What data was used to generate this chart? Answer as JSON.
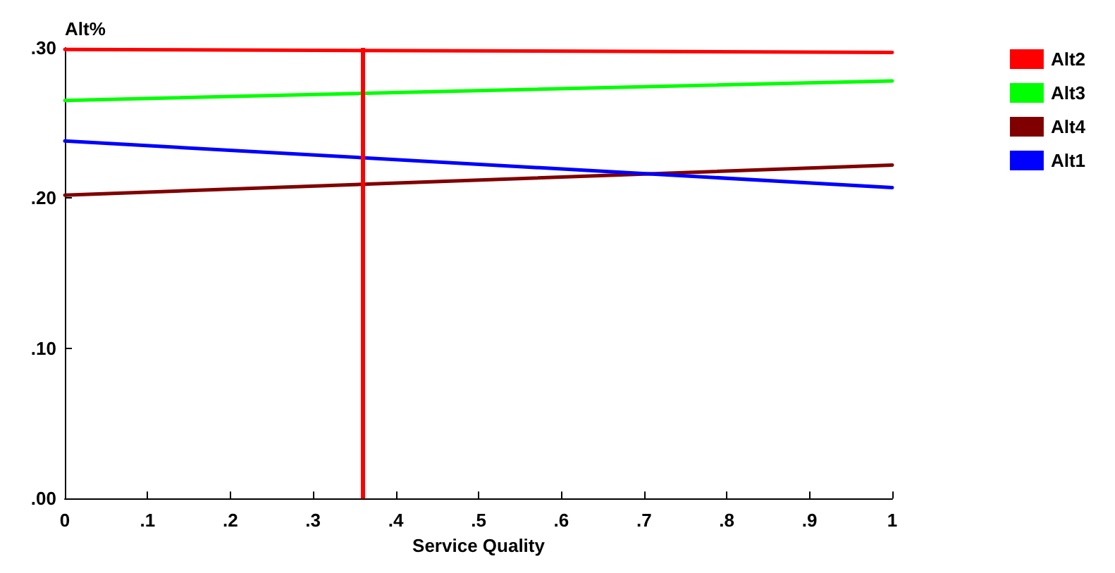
{
  "chart_data": {
    "type": "line",
    "xlabel": "Service Quality",
    "ylabel": "Alt%",
    "legend": "right",
    "series": [
      {
        "name": "Alt2",
        "color": "#ff0000",
        "x": [
          0,
          0.5,
          1
        ],
        "values": [
          0.299,
          0.298,
          0.297
        ]
      },
      {
        "name": "Alt3",
        "color": "#00ff00",
        "x": [
          0,
          1
        ],
        "values": [
          0.265,
          0.278
        ]
      },
      {
        "name": "Alt4",
        "color": "#800000",
        "x": [
          0,
          1
        ],
        "values": [
          0.202,
          0.222
        ]
      },
      {
        "name": "Alt1",
        "color": "#0000ff",
        "x": [
          0,
          1
        ],
        "values": [
          0.238,
          0.207
        ]
      }
    ],
    "xlim": [
      0,
      1
    ],
    "xticks": [
      0,
      {
        "value": 0.1,
        "label": ".1"
      },
      {
        "value": 0.2,
        "label": ".2"
      },
      {
        "value": 0.3,
        "label": ".3"
      },
      {
        "value": 0.4,
        "label": ".4"
      },
      {
        "value": 0.5,
        "label": ".5"
      },
      {
        "value": 0.6,
        "label": ".6"
      },
      {
        "value": 0.7,
        "label": ".7"
      },
      {
        "value": 0.8,
        "label": ".8"
      },
      {
        "value": 0.9,
        "label": ".9"
      },
      1
    ],
    "ylim": [
      0,
      0.3
    ],
    "yticks": [
      {
        "value": 0,
        "label": ".00"
      },
      {
        "value": 0.1,
        "label": ".10"
      },
      {
        "value": 0.2,
        "label": ".20"
      },
      {
        "value": 0.3,
        "label": ".30"
      }
    ],
    "ref_lines": [
      {
        "axis": "x",
        "value": 0.358,
        "color": "#ff0000"
      }
    ],
    "grid": false,
    "marker": "none",
    "line_style": "solid"
  }
}
